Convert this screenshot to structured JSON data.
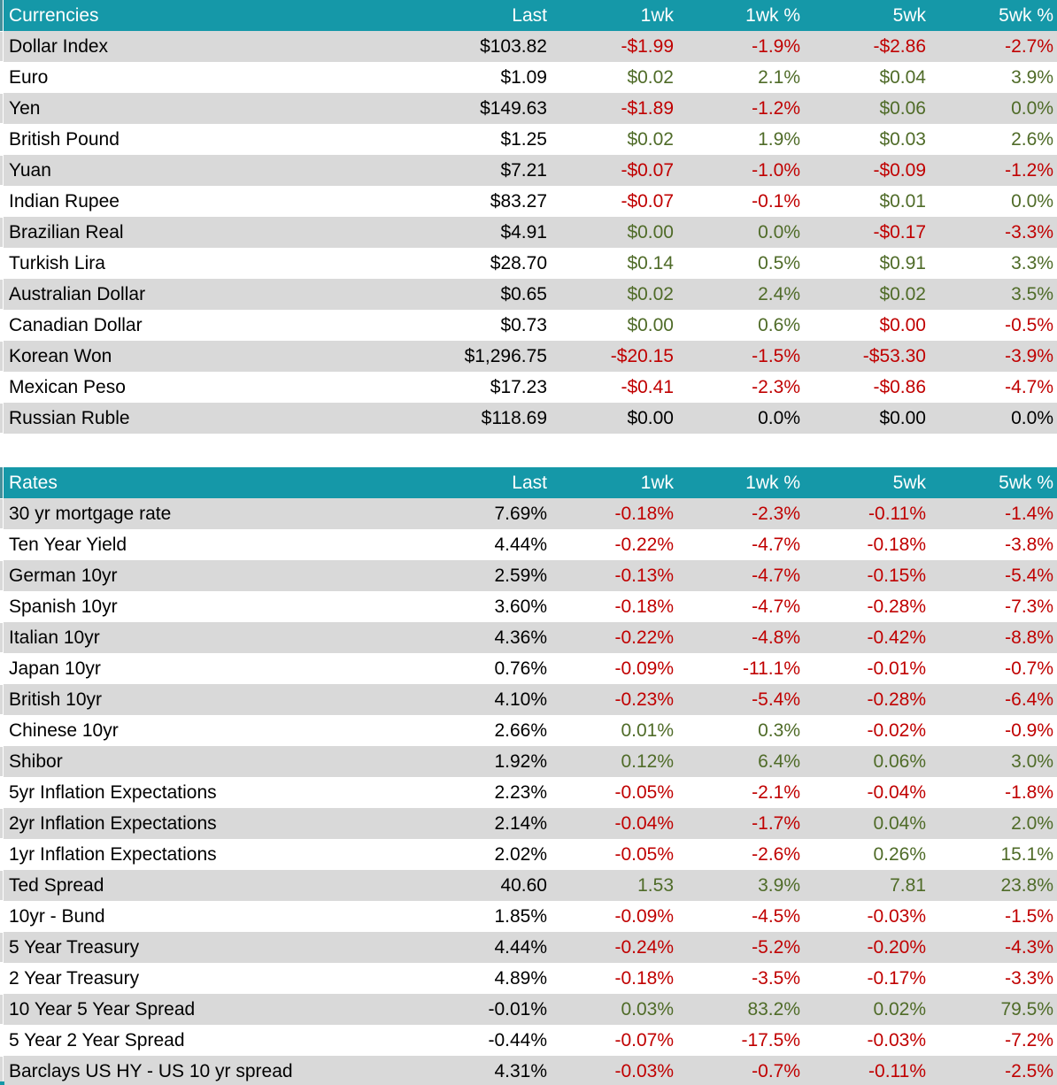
{
  "colors": {
    "header_bg": "#1598A8",
    "header_gutter": "#45909B",
    "header_text": "#FFFFFF",
    "row_bg": "#FFFFFF",
    "row_alt_bg": "#D9D9D9",
    "negative": "#C00000",
    "positive": "#4F6B28",
    "neutral": "#000000"
  },
  "tone_legend": {
    "neg": "negative-red",
    "pos": "positive-green",
    "neu": "neutral-black"
  },
  "chart_data": [
    {
      "type": "table",
      "title": "Currencies",
      "columns": [
        "Last",
        "1wk",
        "1wk %",
        "5wk",
        "5wk %"
      ],
      "rows": [
        {
          "label": "Dollar Index",
          "values": [
            "$103.82",
            "-$1.99",
            "-1.9%",
            "-$2.86",
            "-2.7%"
          ],
          "tones": [
            "neu",
            "neg",
            "neg",
            "neg",
            "neg"
          ]
        },
        {
          "label": "Euro",
          "values": [
            "$1.09",
            "$0.02",
            "2.1%",
            "$0.04",
            "3.9%"
          ],
          "tones": [
            "neu",
            "pos",
            "pos",
            "pos",
            "pos"
          ]
        },
        {
          "label": "Yen",
          "values": [
            "$149.63",
            "-$1.89",
            "-1.2%",
            "$0.06",
            "0.0%"
          ],
          "tones": [
            "neu",
            "neg",
            "neg",
            "pos",
            "pos"
          ]
        },
        {
          "label": "British Pound",
          "values": [
            "$1.25",
            "$0.02",
            "1.9%",
            "$0.03",
            "2.6%"
          ],
          "tones": [
            "neu",
            "pos",
            "pos",
            "pos",
            "pos"
          ]
        },
        {
          "label": "Yuan",
          "values": [
            "$7.21",
            "-$0.07",
            "-1.0%",
            "-$0.09",
            "-1.2%"
          ],
          "tones": [
            "neu",
            "neg",
            "neg",
            "neg",
            "neg"
          ]
        },
        {
          "label": "Indian Rupee",
          "values": [
            "$83.27",
            "-$0.07",
            "-0.1%",
            "$0.01",
            "0.0%"
          ],
          "tones": [
            "neu",
            "neg",
            "neg",
            "pos",
            "pos"
          ]
        },
        {
          "label": "Brazilian Real",
          "values": [
            "$4.91",
            "$0.00",
            "0.0%",
            "-$0.17",
            "-3.3%"
          ],
          "tones": [
            "neu",
            "pos",
            "pos",
            "neg",
            "neg"
          ]
        },
        {
          "label": "Turkish Lira",
          "values": [
            "$28.70",
            "$0.14",
            "0.5%",
            "$0.91",
            "3.3%"
          ],
          "tones": [
            "neu",
            "pos",
            "pos",
            "pos",
            "pos"
          ]
        },
        {
          "label": "Australian Dollar",
          "values": [
            "$0.65",
            "$0.02",
            "2.4%",
            "$0.02",
            "3.5%"
          ],
          "tones": [
            "neu",
            "pos",
            "pos",
            "pos",
            "pos"
          ]
        },
        {
          "label": "Canadian Dollar",
          "values": [
            "$0.73",
            "$0.00",
            "0.6%",
            "$0.00",
            "-0.5%"
          ],
          "tones": [
            "neu",
            "pos",
            "pos",
            "neg",
            "neg"
          ]
        },
        {
          "label": "Korean Won",
          "values": [
            "$1,296.75",
            "-$20.15",
            "-1.5%",
            "-$53.30",
            "-3.9%"
          ],
          "tones": [
            "neu",
            "neg",
            "neg",
            "neg",
            "neg"
          ]
        },
        {
          "label": "Mexican Peso",
          "values": [
            "$17.23",
            "-$0.41",
            "-2.3%",
            "-$0.86",
            "-4.7%"
          ],
          "tones": [
            "neu",
            "neg",
            "neg",
            "neg",
            "neg"
          ]
        },
        {
          "label": "Russian Ruble",
          "values": [
            "$118.69",
            "$0.00",
            "0.0%",
            "$0.00",
            "0.0%"
          ],
          "tones": [
            "neu",
            "neu",
            "neu",
            "neu",
            "neu"
          ]
        }
      ]
    },
    {
      "type": "table",
      "title": "Rates",
      "columns": [
        "Last",
        "1wk",
        "1wk %",
        "5wk",
        "5wk %"
      ],
      "rows": [
        {
          "label": "30 yr mortgage rate",
          "values": [
            "7.69%",
            "-0.18%",
            "-2.3%",
            "-0.11%",
            "-1.4%"
          ],
          "tones": [
            "neu",
            "neg",
            "neg",
            "neg",
            "neg"
          ]
        },
        {
          "label": "Ten Year Yield",
          "values": [
            "4.44%",
            "-0.22%",
            "-4.7%",
            "-0.18%",
            "-3.8%"
          ],
          "tones": [
            "neu",
            "neg",
            "neg",
            "neg",
            "neg"
          ]
        },
        {
          "label": "German 10yr",
          "values": [
            "2.59%",
            "-0.13%",
            "-4.7%",
            "-0.15%",
            "-5.4%"
          ],
          "tones": [
            "neu",
            "neg",
            "neg",
            "neg",
            "neg"
          ]
        },
        {
          "label": "Spanish 10yr",
          "values": [
            "3.60%",
            "-0.18%",
            "-4.7%",
            "-0.28%",
            "-7.3%"
          ],
          "tones": [
            "neu",
            "neg",
            "neg",
            "neg",
            "neg"
          ]
        },
        {
          "label": "Italian 10yr",
          "values": [
            "4.36%",
            "-0.22%",
            "-4.8%",
            "-0.42%",
            "-8.8%"
          ],
          "tones": [
            "neu",
            "neg",
            "neg",
            "neg",
            "neg"
          ]
        },
        {
          "label": "Japan 10yr",
          "values": [
            "0.76%",
            "-0.09%",
            "-11.1%",
            "-0.01%",
            "-0.7%"
          ],
          "tones": [
            "neu",
            "neg",
            "neg",
            "neg",
            "neg"
          ]
        },
        {
          "label": "British 10yr",
          "values": [
            "4.10%",
            "-0.23%",
            "-5.4%",
            "-0.28%",
            "-6.4%"
          ],
          "tones": [
            "neu",
            "neg",
            "neg",
            "neg",
            "neg"
          ]
        },
        {
          "label": "Chinese 10yr",
          "values": [
            "2.66%",
            "0.01%",
            "0.3%",
            "-0.02%",
            "-0.9%"
          ],
          "tones": [
            "neu",
            "pos",
            "pos",
            "neg",
            "neg"
          ]
        },
        {
          "label": "Shibor",
          "values": [
            "1.92%",
            "0.12%",
            "6.4%",
            "0.06%",
            "3.0%"
          ],
          "tones": [
            "neu",
            "pos",
            "pos",
            "pos",
            "pos"
          ]
        },
        {
          "label": "5yr Inflation Expectations",
          "values": [
            "2.23%",
            "-0.05%",
            "-2.1%",
            "-0.04%",
            "-1.8%"
          ],
          "tones": [
            "neu",
            "neg",
            "neg",
            "neg",
            "neg"
          ]
        },
        {
          "label": "2yr Inflation Expectations",
          "values": [
            "2.14%",
            "-0.04%",
            "-1.7%",
            "0.04%",
            "2.0%"
          ],
          "tones": [
            "neu",
            "neg",
            "neg",
            "pos",
            "pos"
          ]
        },
        {
          "label": "1yr Inflation Expectations",
          "values": [
            "2.02%",
            "-0.05%",
            "-2.6%",
            "0.26%",
            "15.1%"
          ],
          "tones": [
            "neu",
            "neg",
            "neg",
            "pos",
            "pos"
          ]
        },
        {
          "label": "Ted Spread",
          "values": [
            "40.60",
            "1.53",
            "3.9%",
            "7.81",
            "23.8%"
          ],
          "tones": [
            "neu",
            "pos",
            "pos",
            "pos",
            "pos"
          ]
        },
        {
          "label": "10yr - Bund",
          "values": [
            "1.85%",
            "-0.09%",
            "-4.5%",
            "-0.03%",
            "-1.5%"
          ],
          "tones": [
            "neu",
            "neg",
            "neg",
            "neg",
            "neg"
          ]
        },
        {
          "label": "5 Year Treasury",
          "values": [
            "4.44%",
            "-0.24%",
            "-5.2%",
            "-0.20%",
            "-4.3%"
          ],
          "tones": [
            "neu",
            "neg",
            "neg",
            "neg",
            "neg"
          ]
        },
        {
          "label": "2 Year Treasury",
          "values": [
            "4.89%",
            "-0.18%",
            "-3.5%",
            "-0.17%",
            "-3.3%"
          ],
          "tones": [
            "neu",
            "neg",
            "neg",
            "neg",
            "neg"
          ]
        },
        {
          "label": "10 Year 5 Year Spread",
          "values": [
            "-0.01%",
            "0.03%",
            "83.2%",
            "0.02%",
            "79.5%"
          ],
          "tones": [
            "neu",
            "pos",
            "pos",
            "pos",
            "pos"
          ]
        },
        {
          "label": "5 Year 2 Year Spread",
          "values": [
            "-0.44%",
            "-0.07%",
            "-17.5%",
            "-0.03%",
            "-7.2%"
          ],
          "tones": [
            "neu",
            "neg",
            "neg",
            "neg",
            "neg"
          ]
        },
        {
          "label": "Barclays US HY - US 10 yr spread",
          "values": [
            "4.31%",
            "-0.03%",
            "-0.7%",
            "-0.11%",
            "-2.5%"
          ],
          "tones": [
            "neu",
            "neg",
            "neg",
            "neg",
            "neg"
          ]
        }
      ]
    }
  ]
}
